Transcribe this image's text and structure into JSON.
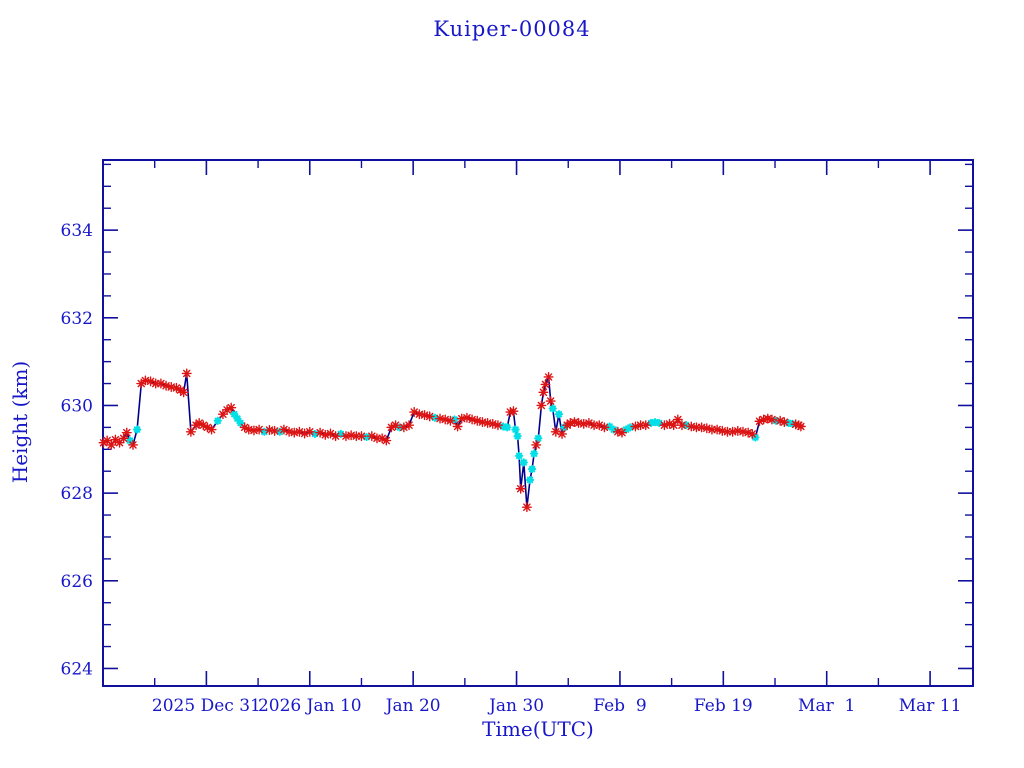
{
  "title": "Kuiper-00084",
  "colors": {
    "background": "#ffffff",
    "text_blue": "#1818c8",
    "axis_frame": "#10109e",
    "data_line": "#00008b",
    "marker_red": "#dc1414",
    "marker_cyan": "#00e0e6"
  },
  "chart_data": {
    "type": "line",
    "title": "Kuiper-00084",
    "xlabel": "Time(UTC)",
    "ylabel": "Height (km)",
    "x_unit": "days since 2025-12-21",
    "xlim": [
      0,
      84.15
    ],
    "ylim": [
      623.6,
      635.6
    ],
    "grid": "off",
    "legend": "none",
    "x_major_ticks": [
      {
        "day": 10,
        "label": "2025 Dec 31"
      },
      {
        "day": 20,
        "label": "2026 Jan 10"
      },
      {
        "day": 30,
        "label": "Jan 20"
      },
      {
        "day": 40,
        "label": "Jan 30"
      },
      {
        "day": 50,
        "label": "Feb  9"
      },
      {
        "day": 60,
        "label": "Feb 19"
      },
      {
        "day": 70,
        "label": "Mar  1"
      },
      {
        "day": 80,
        "label": "Mar 11"
      }
    ],
    "x_minor_step_days": 5,
    "y_major_ticks": [
      624,
      626,
      628,
      630,
      632,
      634
    ],
    "y_minor_step": 0.5,
    "marker_legend": {
      "r": "red asterisk sample",
      "c": "cyan star sample"
    },
    "series": [
      {
        "name": "height",
        "points": [
          [
            0.05,
            629.15,
            "r"
          ],
          [
            0.4,
            629.2,
            "r"
          ],
          [
            0.8,
            629.1,
            "r"
          ],
          [
            1.2,
            629.22,
            "r"
          ],
          [
            1.6,
            629.15,
            "r"
          ],
          [
            2.0,
            629.25,
            "r"
          ],
          [
            2.3,
            629.38,
            "r"
          ],
          [
            2.6,
            629.2,
            "c"
          ],
          [
            2.9,
            629.1,
            "r"
          ],
          [
            3.3,
            629.45,
            "c"
          ],
          [
            3.7,
            630.5,
            "r"
          ],
          [
            4.1,
            630.57,
            "r"
          ],
          [
            4.6,
            630.55,
            "r"
          ],
          [
            5.1,
            630.5,
            "r"
          ],
          [
            5.6,
            630.5,
            "r"
          ],
          [
            6.1,
            630.45,
            "r"
          ],
          [
            6.6,
            630.42,
            "r"
          ],
          [
            7.1,
            630.4,
            "r"
          ],
          [
            7.5,
            630.35,
            "r"
          ],
          [
            7.8,
            630.3,
            "r"
          ],
          [
            8.1,
            630.73,
            "r"
          ],
          [
            8.5,
            629.4,
            "r"
          ],
          [
            9.0,
            629.55,
            "r"
          ],
          [
            9.3,
            629.6,
            "r"
          ],
          [
            9.7,
            629.55,
            "r"
          ],
          [
            10.1,
            629.5,
            "r"
          ],
          [
            10.5,
            629.45,
            "r"
          ],
          [
            11.1,
            629.65,
            "c"
          ],
          [
            11.6,
            629.8,
            "r"
          ],
          [
            12.0,
            629.9,
            "r"
          ],
          [
            12.4,
            629.95,
            "r"
          ],
          [
            12.7,
            629.8,
            "c"
          ],
          [
            13.0,
            629.7,
            "c"
          ],
          [
            13.3,
            629.6,
            "c"
          ],
          [
            13.7,
            629.5,
            "r"
          ],
          [
            14.1,
            629.45,
            "r"
          ],
          [
            14.6,
            629.43,
            "r"
          ],
          [
            15.1,
            629.45,
            "r"
          ],
          [
            15.6,
            629.4,
            "c"
          ],
          [
            16.1,
            629.44,
            "r"
          ],
          [
            16.6,
            629.42,
            "r"
          ],
          [
            17.1,
            629.4,
            "c"
          ],
          [
            17.5,
            629.45,
            "r"
          ],
          [
            18.0,
            629.4,
            "r"
          ],
          [
            18.5,
            629.38,
            "r"
          ],
          [
            19.0,
            629.4,
            "r"
          ],
          [
            19.5,
            629.36,
            "r"
          ],
          [
            20.0,
            629.4,
            "r"
          ],
          [
            20.5,
            629.35,
            "c"
          ],
          [
            21.0,
            629.38,
            "r"
          ],
          [
            21.5,
            629.33,
            "r"
          ],
          [
            22.0,
            629.36,
            "r"
          ],
          [
            22.5,
            629.3,
            "r"
          ],
          [
            23.0,
            629.35,
            "c"
          ],
          [
            23.5,
            629.3,
            "r"
          ],
          [
            24.0,
            629.32,
            "r"
          ],
          [
            24.5,
            629.3,
            "r"
          ],
          [
            25.0,
            629.3,
            "r"
          ],
          [
            25.5,
            629.28,
            "c"
          ],
          [
            26.0,
            629.3,
            "r"
          ],
          [
            26.5,
            629.25,
            "r"
          ],
          [
            27.0,
            629.25,
            "r"
          ],
          [
            27.4,
            629.2,
            "r"
          ],
          [
            27.9,
            629.5,
            "r"
          ],
          [
            28.3,
            629.55,
            "r"
          ],
          [
            28.7,
            629.5,
            "c"
          ],
          [
            29.1,
            629.5,
            "r"
          ],
          [
            29.6,
            629.55,
            "r"
          ],
          [
            30.1,
            629.85,
            "r"
          ],
          [
            30.6,
            629.8,
            "r"
          ],
          [
            31.1,
            629.78,
            "r"
          ],
          [
            31.6,
            629.75,
            "r"
          ],
          [
            32.1,
            629.72,
            "c"
          ],
          [
            32.6,
            629.7,
            "r"
          ],
          [
            33.1,
            629.68,
            "r"
          ],
          [
            33.6,
            629.65,
            "r"
          ],
          [
            34.0,
            629.68,
            "c"
          ],
          [
            34.3,
            629.52,
            "r"
          ],
          [
            34.7,
            629.7,
            "r"
          ],
          [
            35.2,
            629.72,
            "r"
          ],
          [
            35.7,
            629.68,
            "r"
          ],
          [
            36.2,
            629.65,
            "r"
          ],
          [
            36.7,
            629.62,
            "r"
          ],
          [
            37.2,
            629.6,
            "r"
          ],
          [
            37.7,
            629.58,
            "r"
          ],
          [
            38.2,
            629.55,
            "r"
          ],
          [
            38.7,
            629.52,
            "c"
          ],
          [
            39.1,
            629.5,
            "c"
          ],
          [
            39.4,
            629.85,
            "r"
          ],
          [
            39.7,
            629.87,
            "r"
          ],
          [
            39.9,
            629.45,
            "c"
          ],
          [
            40.1,
            629.3,
            "c"
          ],
          [
            40.25,
            628.85,
            "c"
          ],
          [
            40.4,
            628.1,
            "r"
          ],
          [
            40.7,
            628.7,
            "c"
          ],
          [
            41.0,
            627.68,
            "r"
          ],
          [
            41.3,
            628.3,
            "c"
          ],
          [
            41.5,
            628.55,
            "c"
          ],
          [
            41.7,
            628.9,
            "c"
          ],
          [
            41.9,
            629.1,
            "r"
          ],
          [
            42.1,
            629.25,
            "c"
          ],
          [
            42.4,
            630.0,
            "r"
          ],
          [
            42.6,
            630.3,
            "r"
          ],
          [
            42.8,
            630.48,
            "r"
          ],
          [
            43.1,
            630.65,
            "r"
          ],
          [
            43.3,
            630.1,
            "r"
          ],
          [
            43.5,
            629.93,
            "c"
          ],
          [
            43.8,
            629.4,
            "r"
          ],
          [
            44.1,
            629.8,
            "c"
          ],
          [
            44.4,
            629.35,
            "r"
          ],
          [
            44.6,
            629.5,
            "c"
          ],
          [
            44.9,
            629.55,
            "r"
          ],
          [
            45.2,
            629.6,
            "r"
          ],
          [
            45.6,
            629.62,
            "r"
          ],
          [
            46.0,
            629.6,
            "r"
          ],
          [
            46.5,
            629.58,
            "r"
          ],
          [
            47.0,
            629.6,
            "r"
          ],
          [
            47.5,
            629.55,
            "r"
          ],
          [
            48.0,
            629.55,
            "r"
          ],
          [
            48.5,
            629.5,
            "r"
          ],
          [
            49.0,
            629.52,
            "c"
          ],
          [
            49.4,
            629.45,
            "c"
          ],
          [
            49.8,
            629.4,
            "r"
          ],
          [
            50.2,
            629.38,
            "r"
          ],
          [
            50.6,
            629.45,
            "c"
          ],
          [
            51.0,
            629.5,
            "c"
          ],
          [
            51.5,
            629.52,
            "r"
          ],
          [
            52.0,
            629.55,
            "r"
          ],
          [
            52.5,
            629.55,
            "r"
          ],
          [
            53.0,
            629.6,
            "c"
          ],
          [
            53.4,
            629.62,
            "c"
          ],
          [
            53.8,
            629.6,
            "c"
          ],
          [
            54.3,
            629.55,
            "r"
          ],
          [
            54.8,
            629.58,
            "r"
          ],
          [
            55.2,
            629.55,
            "r"
          ],
          [
            55.6,
            629.68,
            "r"
          ],
          [
            56.0,
            629.55,
            "r"
          ],
          [
            56.4,
            629.55,
            "c"
          ],
          [
            56.9,
            629.52,
            "r"
          ],
          [
            57.4,
            629.5,
            "r"
          ],
          [
            57.9,
            629.5,
            "r"
          ],
          [
            58.4,
            629.48,
            "r"
          ],
          [
            58.9,
            629.45,
            "r"
          ],
          [
            59.4,
            629.45,
            "r"
          ],
          [
            59.9,
            629.42,
            "r"
          ],
          [
            60.4,
            629.4,
            "r"
          ],
          [
            60.9,
            629.4,
            "r"
          ],
          [
            61.4,
            629.42,
            "r"
          ],
          [
            61.9,
            629.4,
            "r"
          ],
          [
            62.4,
            629.38,
            "r"
          ],
          [
            62.8,
            629.35,
            "r"
          ],
          [
            63.1,
            629.27,
            "c"
          ],
          [
            63.5,
            629.64,
            "r"
          ],
          [
            63.9,
            629.68,
            "r"
          ],
          [
            64.3,
            629.7,
            "r"
          ],
          [
            64.7,
            629.68,
            "r"
          ],
          [
            65.1,
            629.65,
            "c"
          ],
          [
            65.5,
            629.65,
            "r"
          ],
          [
            65.9,
            629.62,
            "r"
          ],
          [
            66.3,
            629.6,
            "c"
          ],
          [
            66.7,
            629.58,
            "c"
          ],
          [
            67.0,
            629.57,
            "r"
          ],
          [
            67.3,
            629.55,
            "r"
          ],
          [
            67.5,
            629.52,
            "r"
          ]
        ]
      }
    ]
  }
}
